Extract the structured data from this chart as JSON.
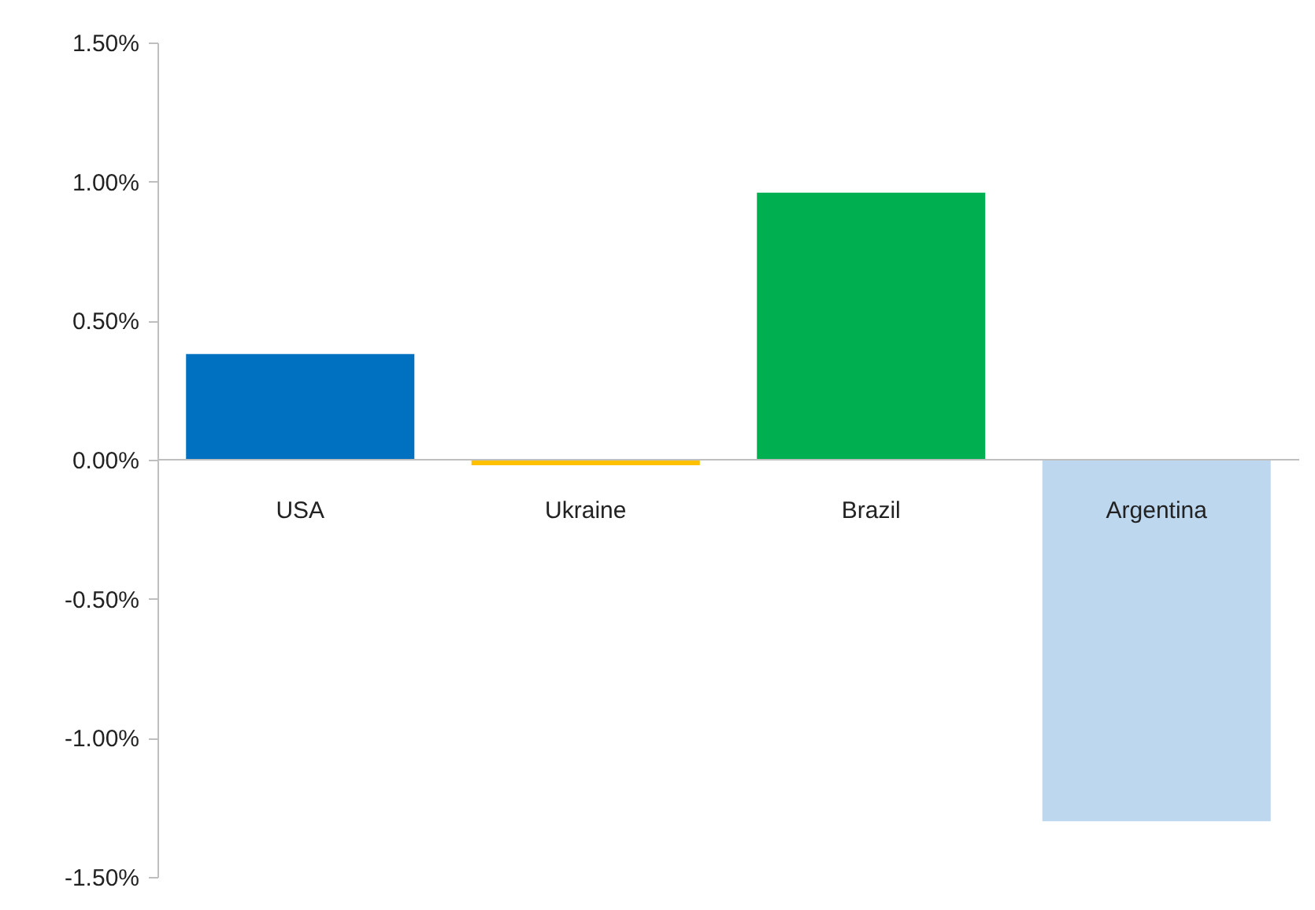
{
  "chart_data": {
    "type": "bar",
    "categories": [
      "USA",
      "Ukraine",
      "Brazil",
      "Argentina"
    ],
    "values": [
      0.38,
      -0.02,
      0.96,
      -1.3
    ],
    "colors": [
      "#0070c0",
      "#ffc000",
      "#00b050",
      "#bdd7ee"
    ],
    "ylim": [
      -1.5,
      1.5
    ],
    "yticks": [
      {
        "value": -1.5,
        "label": "-1.50%"
      },
      {
        "value": -1.0,
        "label": "-1.00%"
      },
      {
        "value": -0.5,
        "label": "-0.50%"
      },
      {
        "value": 0,
        "label": "0.00%"
      },
      {
        "value": 0.5,
        "label": "0.50%"
      },
      {
        "value": 1.0,
        "label": "1.00%"
      },
      {
        "value": 1.5,
        "label": "1.50%"
      }
    ],
    "grid": false
  }
}
